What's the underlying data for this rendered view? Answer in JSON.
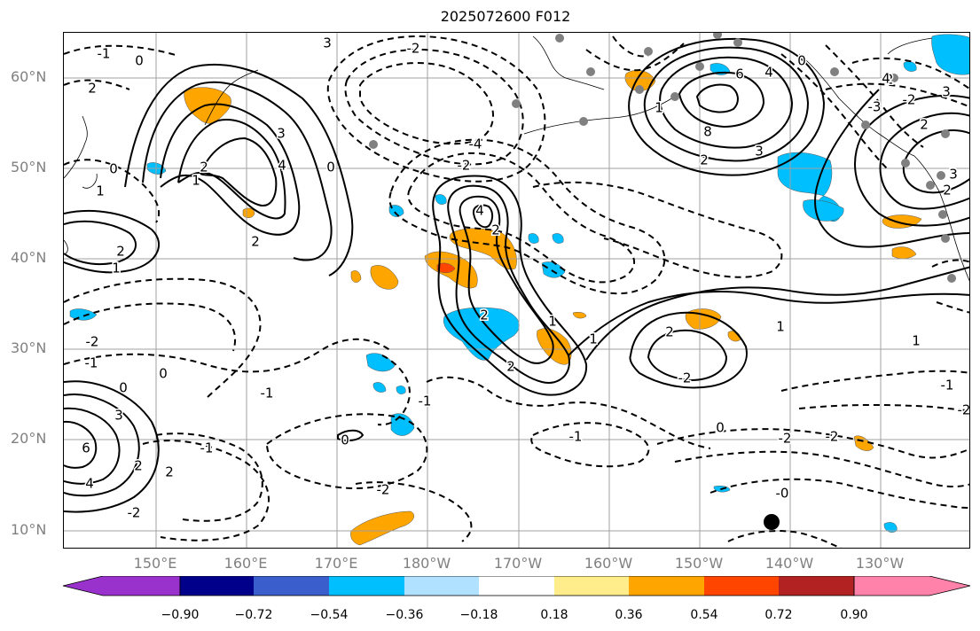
{
  "title": "2025072600 F012",
  "lat_labels": [
    "60°N",
    "50°N",
    "40°N",
    "30°N",
    "20°N",
    "10°N"
  ],
  "lon_labels": [
    "150°E",
    "160°E",
    "170°E",
    "180°W",
    "170°W",
    "160°W",
    "150°W",
    "140°W",
    "130°W"
  ],
  "colorbar": {
    "tick_labels": [
      "−0.90",
      "−0.72",
      "−0.54",
      "−0.36",
      "−0.18",
      "0.18",
      "0.36",
      "0.54",
      "0.72",
      "0.90"
    ],
    "colors": [
      "#9932cc",
      "#00008b",
      "#3a5fcd",
      "#00bfff",
      "#b0e2ff",
      "#ffffff",
      "#ffec8b",
      "#ffa500",
      "#ff4500",
      "#b22222",
      "#ff82ab"
    ]
  },
  "contour_labels": [
    {
      "t": "3"
    },
    {
      "t": "-1"
    },
    {
      "t": "0"
    },
    {
      "t": "2"
    },
    {
      "t": "-2"
    },
    {
      "t": "-4"
    },
    {
      "t": "3"
    },
    {
      "t": "4"
    },
    {
      "t": "0"
    },
    {
      "t": "2"
    },
    {
      "t": "0"
    },
    {
      "t": "2"
    },
    {
      "t": "1"
    },
    {
      "t": "1"
    },
    {
      "t": "2"
    },
    {
      "t": "1"
    },
    {
      "t": "4"
    },
    {
      "t": "2"
    },
    {
      "t": "-2"
    },
    {
      "t": "2"
    },
    {
      "t": "1"
    },
    {
      "t": "1"
    },
    {
      "t": "2"
    },
    {
      "t": "-2"
    },
    {
      "t": "0"
    },
    {
      "t": "-1"
    },
    {
      "t": "-1"
    },
    {
      "t": "0"
    },
    {
      "t": "3"
    },
    {
      "t": "6"
    },
    {
      "t": "4"
    },
    {
      "t": "2"
    },
    {
      "t": "-1"
    },
    {
      "t": "-1"
    },
    {
      "t": "0"
    },
    {
      "t": "-2"
    },
    {
      "t": "2"
    },
    {
      "t": "-2"
    },
    {
      "t": "-1"
    },
    {
      "t": "-0"
    },
    {
      "t": "6"
    },
    {
      "t": "4"
    },
    {
      "t": "8"
    },
    {
      "t": "3"
    },
    {
      "t": "2"
    },
    {
      "t": "1"
    },
    {
      "t": "0"
    },
    {
      "t": "-3"
    },
    {
      "t": "-2"
    },
    {
      "t": "3"
    },
    {
      "t": "2"
    },
    {
      "t": "-2"
    },
    {
      "t": "4"
    },
    {
      "t": "2"
    },
    {
      "t": "1"
    },
    {
      "t": "0"
    },
    {
      "t": "-2"
    },
    {
      "t": "1"
    },
    {
      "t": "3"
    },
    {
      "t": "2"
    },
    {
      "t": "-1"
    },
    {
      "t": "-2"
    },
    {
      "t": "-2"
    },
    {
      "t": "-2"
    }
  ]
}
